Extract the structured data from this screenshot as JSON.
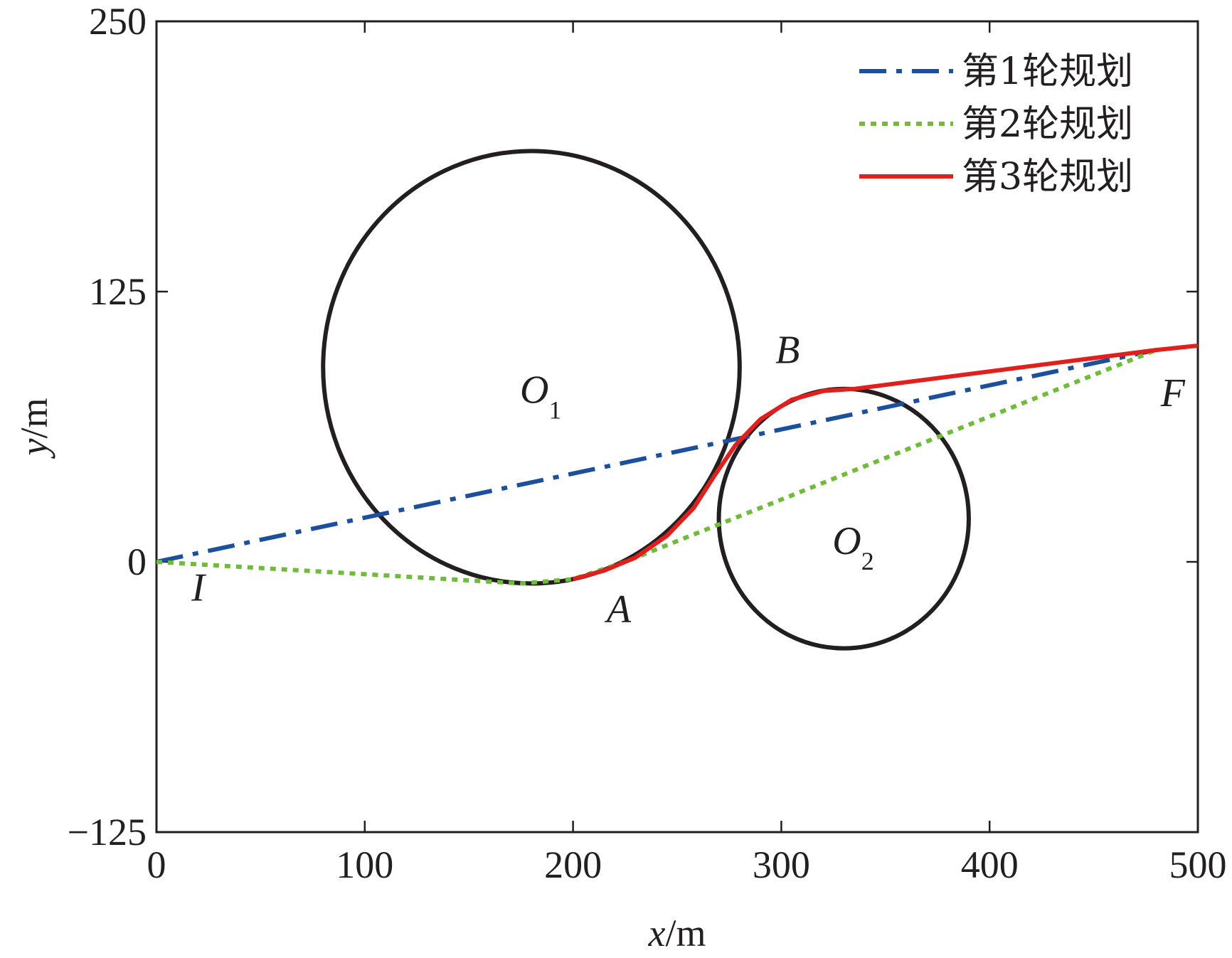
{
  "chart_data": {
    "type": "line",
    "title": "",
    "xlabel_var": "x",
    "xlabel_unit": "/m",
    "ylabel_var": "y",
    "ylabel_unit": "/m",
    "xlim": [
      0,
      500
    ],
    "ylim": [
      -125,
      250
    ],
    "x_ticks": [
      0,
      100,
      200,
      300,
      400,
      500
    ],
    "y_ticks": [
      -125,
      0,
      125,
      250
    ],
    "x_tick_labels": [
      "0",
      "100",
      "200",
      "300",
      "400",
      "500"
    ],
    "y_tick_labels": [
      "−125",
      "0",
      "125",
      "250"
    ],
    "grid": false,
    "legend_position": "top-right",
    "obstacles": [
      {
        "name": "O",
        "sub": "1",
        "cx": 180,
        "cy": 90,
        "r": 100
      },
      {
        "name": "O",
        "sub": "2",
        "cx": 330,
        "cy": 20,
        "r": 60
      }
    ],
    "series": [
      {
        "name": "第1轮规划",
        "color": "#1c4f9c",
        "style": "dashdot",
        "points": [
          [
            0,
            0
          ],
          [
            480,
            98
          ]
        ]
      },
      {
        "name": "第2轮规划",
        "color": "#6fbb3a",
        "style": "dotted",
        "points": [
          [
            0,
            0
          ],
          [
            175,
            -10
          ],
          [
            200,
            -8
          ],
          [
            225,
            0
          ],
          [
            480,
            98
          ]
        ]
      },
      {
        "name": "第3轮规划",
        "color": "#e0201c",
        "style": "solid",
        "points": [
          [
            200,
            -8
          ],
          [
            215,
            -4
          ],
          [
            230,
            2
          ],
          [
            245,
            12
          ],
          [
            258,
            25
          ],
          [
            268,
            40
          ],
          [
            278,
            54
          ],
          [
            290,
            66
          ],
          [
            305,
            75
          ],
          [
            320,
            79
          ],
          [
            335,
            80
          ],
          [
            480,
            98
          ],
          [
            500,
            100
          ]
        ]
      }
    ],
    "annotations": [
      {
        "label": "I",
        "x": 20,
        "y": -18
      },
      {
        "label": "A",
        "x": 222,
        "y": -28
      },
      {
        "label": "B",
        "x": 303,
        "y": 92
      },
      {
        "label": "F",
        "x": 488,
        "y": 72
      }
    ]
  }
}
